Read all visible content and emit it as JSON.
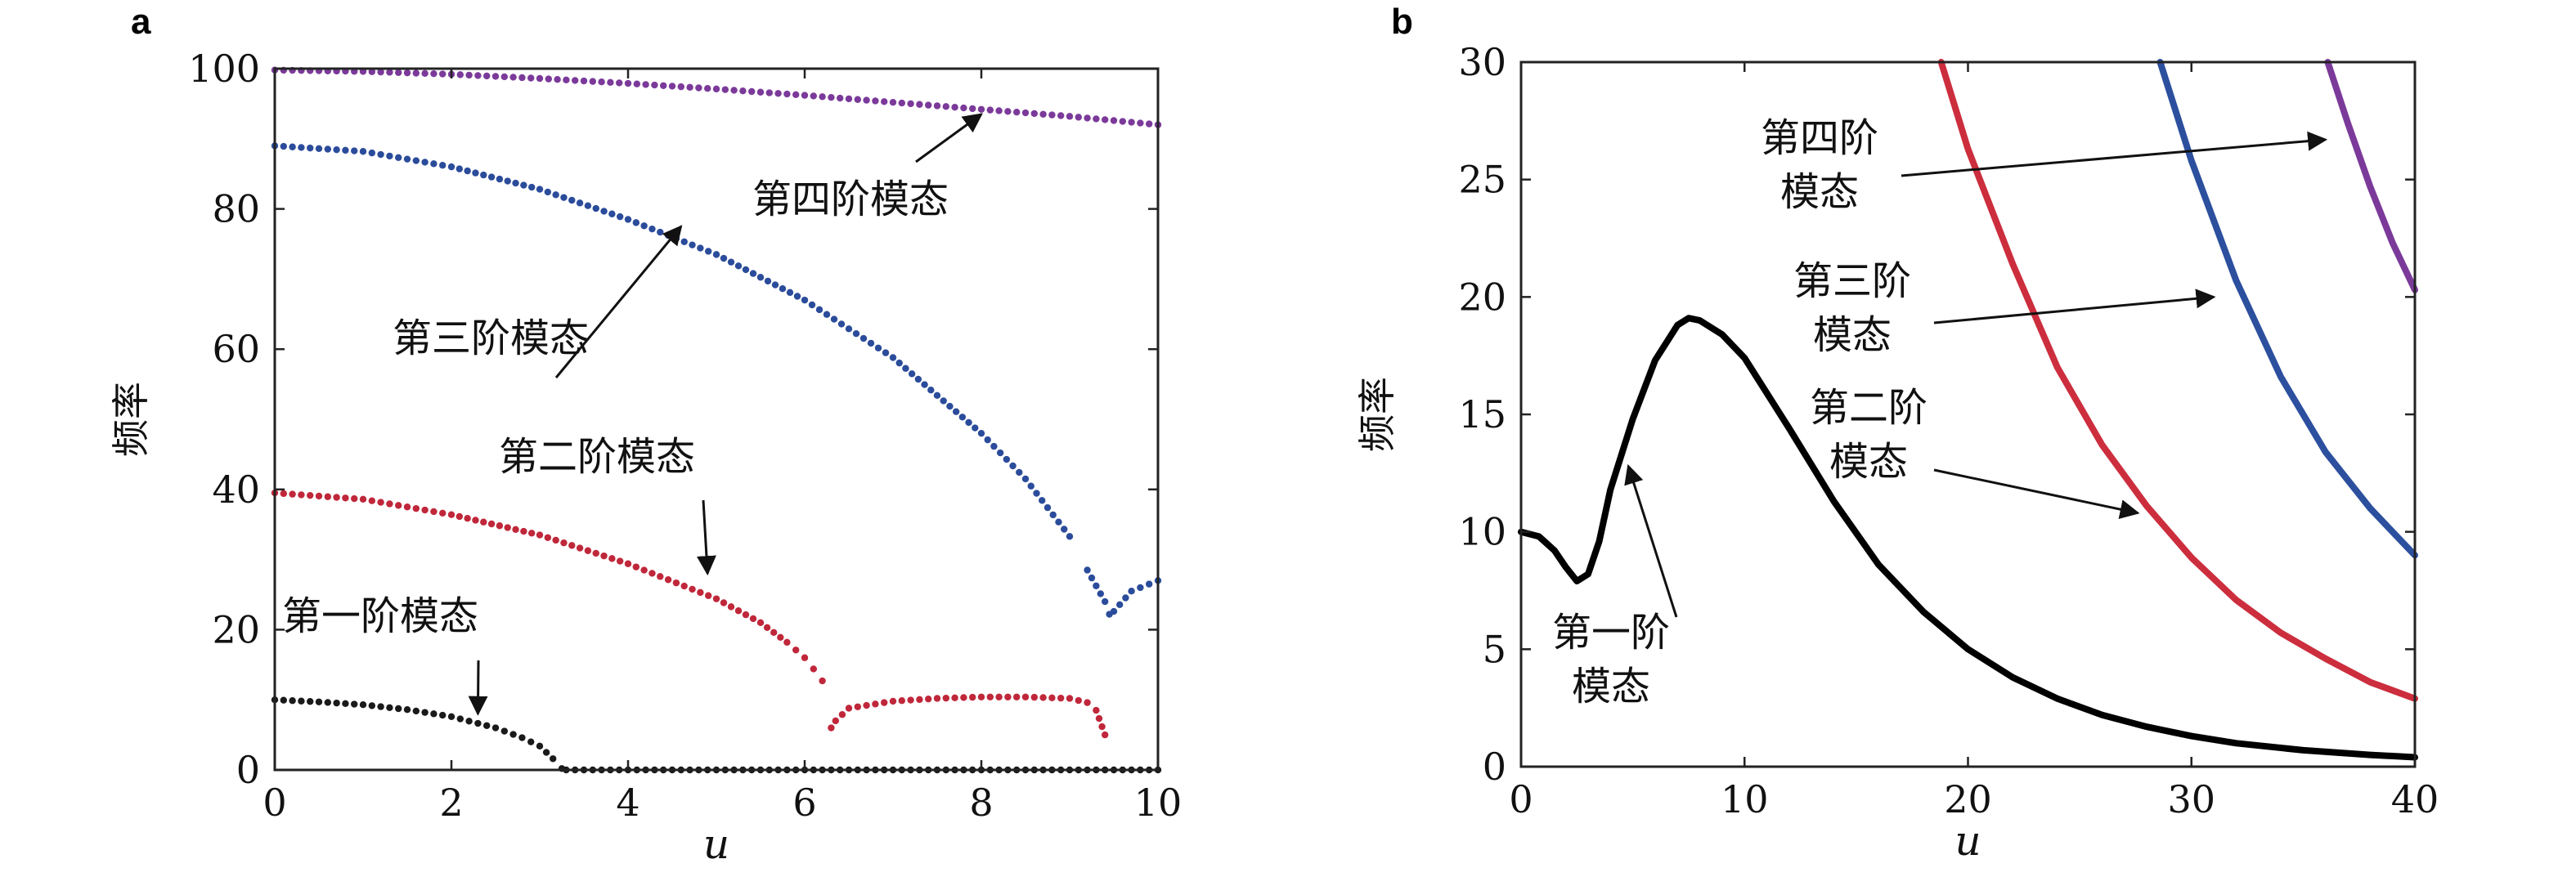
{
  "chart_data": [
    {
      "panel": "a",
      "type": "scatter",
      "xlabel": "u",
      "ylabel": "频率",
      "xlim": [
        0,
        10
      ],
      "ylim": [
        0,
        100
      ],
      "xticks": [
        0,
        2,
        4,
        6,
        8,
        10
      ],
      "yticks": [
        0,
        20,
        40,
        60,
        80,
        100
      ],
      "grid": false,
      "series": [
        {
          "name": "第一阶模态",
          "color": "#1a1a1a",
          "points": [
            [
              0.0,
              10.0
            ],
            [
              0.5,
              9.7
            ],
            [
              1.0,
              9.3
            ],
            [
              1.5,
              8.6
            ],
            [
              2.0,
              7.6
            ],
            [
              2.5,
              6.0
            ],
            [
              2.8,
              4.6
            ],
            [
              3.0,
              3.4
            ],
            [
              3.15,
              1.6
            ],
            [
              3.25,
              0.2
            ],
            [
              3.3,
              0.0
            ],
            [
              4.0,
              0.0
            ],
            [
              5.0,
              0.0
            ],
            [
              6.0,
              0.0
            ],
            [
              7.0,
              0.0
            ],
            [
              8.0,
              0.0
            ],
            [
              9.0,
              0.0
            ],
            [
              9.5,
              0.0
            ],
            [
              10.0,
              0.0
            ]
          ]
        },
        {
          "name": "第二阶模态",
          "color": "#c0273a",
          "points": [
            [
              0.0,
              39.5
            ],
            [
              1.0,
              38.6
            ],
            [
              2.0,
              36.4
            ],
            [
              3.0,
              33.5
            ],
            [
              4.0,
              29.4
            ],
            [
              5.0,
              24.4
            ],
            [
              5.5,
              21.0
            ],
            [
              5.8,
              18.2
            ],
            [
              6.0,
              16.0
            ],
            [
              6.1,
              14.4
            ],
            [
              6.2,
              12.7
            ],
            [
              6.3,
              6.0
            ],
            [
              6.35,
              7.0
            ],
            [
              6.5,
              8.8
            ],
            [
              7.0,
              9.8
            ],
            [
              7.5,
              10.2
            ],
            [
              8.0,
              10.4
            ],
            [
              8.5,
              10.4
            ],
            [
              9.0,
              10.2
            ],
            [
              9.2,
              9.6
            ],
            [
              9.3,
              8.5
            ],
            [
              9.4,
              5.0
            ]
          ]
        },
        {
          "name": "第三阶模态",
          "color": "#2b4c9b",
          "points": [
            [
              0.0,
              89.0
            ],
            [
              1.0,
              88.2
            ],
            [
              2.0,
              86.0
            ],
            [
              3.0,
              82.8
            ],
            [
              4.0,
              78.5
            ],
            [
              5.0,
              73.5
            ],
            [
              6.0,
              67.0
            ],
            [
              7.0,
              58.8
            ],
            [
              8.0,
              48.0
            ],
            [
              8.5,
              41.5
            ],
            [
              9.0,
              33.3
            ],
            [
              9.2,
              28.5
            ],
            [
              9.4,
              24.0
            ],
            [
              9.45,
              22.2
            ],
            [
              9.5,
              22.6
            ],
            [
              9.7,
              25.5
            ],
            [
              10.0,
              27.0
            ]
          ]
        },
        {
          "name": "第四阶模态",
          "color": "#7b3a9a",
          "points": [
            [
              0.0,
              99.8
            ],
            [
              1.0,
              99.6
            ],
            [
              2.0,
              99.2
            ],
            [
              3.0,
              98.6
            ],
            [
              4.0,
              97.9
            ],
            [
              5.0,
              97.1
            ],
            [
              6.0,
              96.2
            ],
            [
              7.0,
              95.2
            ],
            [
              8.0,
              94.2
            ],
            [
              9.0,
              93.2
            ],
            [
              10.0,
              92.0
            ]
          ]
        }
      ],
      "annotations": [
        {
          "text": "第一阶模态",
          "arrow_to": [
            2.3,
            8.0
          ]
        },
        {
          "text": "第二阶模态",
          "arrow_to": [
            4.9,
            28.0
          ]
        },
        {
          "text": "第三阶模态",
          "arrow_to": [
            4.6,
            77.5
          ]
        },
        {
          "text": "第四阶模态",
          "arrow_to": [
            8.0,
            93.5
          ]
        }
      ]
    },
    {
      "panel": "b",
      "type": "line",
      "xlabel": "u",
      "ylabel": "频率",
      "xlim": [
        0,
        40
      ],
      "ylim": [
        0,
        30
      ],
      "xticks": [
        0,
        10,
        20,
        30,
        40
      ],
      "yticks": [
        0,
        5,
        10,
        15,
        20,
        25,
        30
      ],
      "grid": false,
      "series": [
        {
          "name": "第一阶模态",
          "color": "#000000",
          "points": [
            [
              0.0,
              10.0
            ],
            [
              0.8,
              9.8
            ],
            [
              1.5,
              9.2
            ],
            [
              2.0,
              8.5
            ],
            [
              2.5,
              7.9
            ],
            [
              3.0,
              8.2
            ],
            [
              3.5,
              9.6
            ],
            [
              4.0,
              11.8
            ],
            [
              5.0,
              14.8
            ],
            [
              6.0,
              17.3
            ],
            [
              7.0,
              18.8
            ],
            [
              7.5,
              19.1
            ],
            [
              8.0,
              19.0
            ],
            [
              9.0,
              18.4
            ],
            [
              10.0,
              17.4
            ],
            [
              12.0,
              14.4
            ],
            [
              14.0,
              11.3
            ],
            [
              16.0,
              8.6
            ],
            [
              18.0,
              6.6
            ],
            [
              20.0,
              5.0
            ],
            [
              22.0,
              3.8
            ],
            [
              24.0,
              2.9
            ],
            [
              26.0,
              2.2
            ],
            [
              28.0,
              1.7
            ],
            [
              30.0,
              1.3
            ],
            [
              32.0,
              1.0
            ],
            [
              35.0,
              0.7
            ],
            [
              38.0,
              0.5
            ],
            [
              40.0,
              0.4
            ]
          ]
        },
        {
          "name": "第二阶模态",
          "color": "#cc2e3d",
          "points": [
            [
              18.8,
              30.0
            ],
            [
              20.0,
              26.3
            ],
            [
              22.0,
              21.4
            ],
            [
              24.0,
              17.0
            ],
            [
              26.0,
              13.7
            ],
            [
              28.0,
              11.1
            ],
            [
              30.0,
              8.9
            ],
            [
              32.0,
              7.1
            ],
            [
              34.0,
              5.7
            ],
            [
              36.0,
              4.6
            ],
            [
              38.0,
              3.6
            ],
            [
              40.0,
              2.9
            ]
          ]
        },
        {
          "name": "第三阶模态",
          "color": "#2c4f9e",
          "points": [
            [
              28.6,
              30.0
            ],
            [
              30.0,
              25.8
            ],
            [
              32.0,
              20.7
            ],
            [
              34.0,
              16.6
            ],
            [
              36.0,
              13.4
            ],
            [
              38.0,
              11.0
            ],
            [
              40.0,
              9.0
            ]
          ]
        },
        {
          "name": "第四阶模态",
          "color": "#7b3a9a",
          "points": [
            [
              36.1,
              30.0
            ],
            [
              37.0,
              27.4
            ],
            [
              38.0,
              24.7
            ],
            [
              39.0,
              22.3
            ],
            [
              40.0,
              20.3
            ]
          ]
        }
      ],
      "annotations": [
        {
          "text": "第一阶\n模态",
          "arrow_to": [
            4.8,
            12.8
          ]
        },
        {
          "text": "第二阶\n模态",
          "arrow_to": [
            27.6,
            10.8
          ]
        },
        {
          "text": "第三阶\n模态",
          "arrow_to": [
            31.0,
            20.0
          ]
        },
        {
          "text": "第四阶\n模态",
          "arrow_to": [
            36.0,
            26.7
          ]
        }
      ]
    }
  ]
}
